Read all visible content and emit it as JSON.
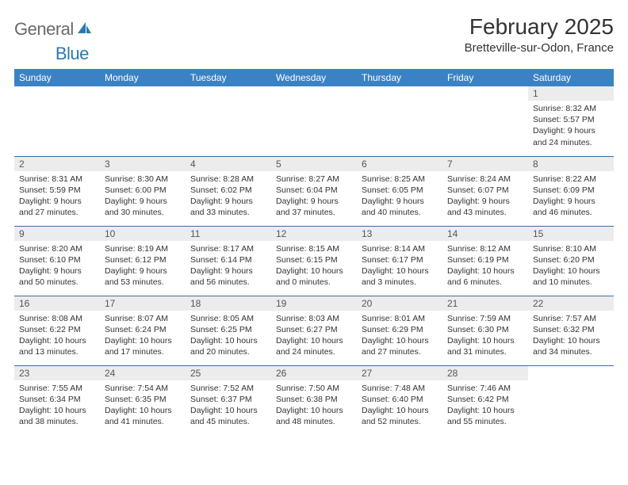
{
  "brand": {
    "part1": "General",
    "part2": "Blue"
  },
  "title": "February 2025",
  "location": "Bretteville-sur-Odon, France",
  "colors": {
    "header_bg": "#3b82c4",
    "header_text": "#ffffff",
    "daynum_bg": "#ececec",
    "row_border": "#3b6ea0",
    "body_text": "#333333",
    "logo_gray": "#6a6a6a",
    "logo_blue": "#2a7ab0"
  },
  "typography": {
    "title_fontsize": 28,
    "location_fontsize": 15,
    "header_fontsize": 12,
    "cell_fontsize": 10.5
  },
  "weekdays": [
    "Sunday",
    "Monday",
    "Tuesday",
    "Wednesday",
    "Thursday",
    "Friday",
    "Saturday"
  ],
  "weeks": [
    [
      {
        "day": "",
        "lines": [
          "",
          "",
          "",
          ""
        ]
      },
      {
        "day": "",
        "lines": [
          "",
          "",
          "",
          ""
        ]
      },
      {
        "day": "",
        "lines": [
          "",
          "",
          "",
          ""
        ]
      },
      {
        "day": "",
        "lines": [
          "",
          "",
          "",
          ""
        ]
      },
      {
        "day": "",
        "lines": [
          "",
          "",
          "",
          ""
        ]
      },
      {
        "day": "",
        "lines": [
          "",
          "",
          "",
          ""
        ]
      },
      {
        "day": "1",
        "lines": [
          "Sunrise: 8:32 AM",
          "Sunset: 5:57 PM",
          "Daylight: 9 hours",
          "and 24 minutes."
        ]
      }
    ],
    [
      {
        "day": "2",
        "lines": [
          "Sunrise: 8:31 AM",
          "Sunset: 5:59 PM",
          "Daylight: 9 hours",
          "and 27 minutes."
        ]
      },
      {
        "day": "3",
        "lines": [
          "Sunrise: 8:30 AM",
          "Sunset: 6:00 PM",
          "Daylight: 9 hours",
          "and 30 minutes."
        ]
      },
      {
        "day": "4",
        "lines": [
          "Sunrise: 8:28 AM",
          "Sunset: 6:02 PM",
          "Daylight: 9 hours",
          "and 33 minutes."
        ]
      },
      {
        "day": "5",
        "lines": [
          "Sunrise: 8:27 AM",
          "Sunset: 6:04 PM",
          "Daylight: 9 hours",
          "and 37 minutes."
        ]
      },
      {
        "day": "6",
        "lines": [
          "Sunrise: 8:25 AM",
          "Sunset: 6:05 PM",
          "Daylight: 9 hours",
          "and 40 minutes."
        ]
      },
      {
        "day": "7",
        "lines": [
          "Sunrise: 8:24 AM",
          "Sunset: 6:07 PM",
          "Daylight: 9 hours",
          "and 43 minutes."
        ]
      },
      {
        "day": "8",
        "lines": [
          "Sunrise: 8:22 AM",
          "Sunset: 6:09 PM",
          "Daylight: 9 hours",
          "and 46 minutes."
        ]
      }
    ],
    [
      {
        "day": "9",
        "lines": [
          "Sunrise: 8:20 AM",
          "Sunset: 6:10 PM",
          "Daylight: 9 hours",
          "and 50 minutes."
        ]
      },
      {
        "day": "10",
        "lines": [
          "Sunrise: 8:19 AM",
          "Sunset: 6:12 PM",
          "Daylight: 9 hours",
          "and 53 minutes."
        ]
      },
      {
        "day": "11",
        "lines": [
          "Sunrise: 8:17 AM",
          "Sunset: 6:14 PM",
          "Daylight: 9 hours",
          "and 56 minutes."
        ]
      },
      {
        "day": "12",
        "lines": [
          "Sunrise: 8:15 AM",
          "Sunset: 6:15 PM",
          "Daylight: 10 hours",
          "and 0 minutes."
        ]
      },
      {
        "day": "13",
        "lines": [
          "Sunrise: 8:14 AM",
          "Sunset: 6:17 PM",
          "Daylight: 10 hours",
          "and 3 minutes."
        ]
      },
      {
        "day": "14",
        "lines": [
          "Sunrise: 8:12 AM",
          "Sunset: 6:19 PM",
          "Daylight: 10 hours",
          "and 6 minutes."
        ]
      },
      {
        "day": "15",
        "lines": [
          "Sunrise: 8:10 AM",
          "Sunset: 6:20 PM",
          "Daylight: 10 hours",
          "and 10 minutes."
        ]
      }
    ],
    [
      {
        "day": "16",
        "lines": [
          "Sunrise: 8:08 AM",
          "Sunset: 6:22 PM",
          "Daylight: 10 hours",
          "and 13 minutes."
        ]
      },
      {
        "day": "17",
        "lines": [
          "Sunrise: 8:07 AM",
          "Sunset: 6:24 PM",
          "Daylight: 10 hours",
          "and 17 minutes."
        ]
      },
      {
        "day": "18",
        "lines": [
          "Sunrise: 8:05 AM",
          "Sunset: 6:25 PM",
          "Daylight: 10 hours",
          "and 20 minutes."
        ]
      },
      {
        "day": "19",
        "lines": [
          "Sunrise: 8:03 AM",
          "Sunset: 6:27 PM",
          "Daylight: 10 hours",
          "and 24 minutes."
        ]
      },
      {
        "day": "20",
        "lines": [
          "Sunrise: 8:01 AM",
          "Sunset: 6:29 PM",
          "Daylight: 10 hours",
          "and 27 minutes."
        ]
      },
      {
        "day": "21",
        "lines": [
          "Sunrise: 7:59 AM",
          "Sunset: 6:30 PM",
          "Daylight: 10 hours",
          "and 31 minutes."
        ]
      },
      {
        "day": "22",
        "lines": [
          "Sunrise: 7:57 AM",
          "Sunset: 6:32 PM",
          "Daylight: 10 hours",
          "and 34 minutes."
        ]
      }
    ],
    [
      {
        "day": "23",
        "lines": [
          "Sunrise: 7:55 AM",
          "Sunset: 6:34 PM",
          "Daylight: 10 hours",
          "and 38 minutes."
        ]
      },
      {
        "day": "24",
        "lines": [
          "Sunrise: 7:54 AM",
          "Sunset: 6:35 PM",
          "Daylight: 10 hours",
          "and 41 minutes."
        ]
      },
      {
        "day": "25",
        "lines": [
          "Sunrise: 7:52 AM",
          "Sunset: 6:37 PM",
          "Daylight: 10 hours",
          "and 45 minutes."
        ]
      },
      {
        "day": "26",
        "lines": [
          "Sunrise: 7:50 AM",
          "Sunset: 6:38 PM",
          "Daylight: 10 hours",
          "and 48 minutes."
        ]
      },
      {
        "day": "27",
        "lines": [
          "Sunrise: 7:48 AM",
          "Sunset: 6:40 PM",
          "Daylight: 10 hours",
          "and 52 minutes."
        ]
      },
      {
        "day": "28",
        "lines": [
          "Sunrise: 7:46 AM",
          "Sunset: 6:42 PM",
          "Daylight: 10 hours",
          "and 55 minutes."
        ]
      },
      {
        "day": "",
        "lines": [
          "",
          "",
          "",
          ""
        ]
      }
    ]
  ]
}
